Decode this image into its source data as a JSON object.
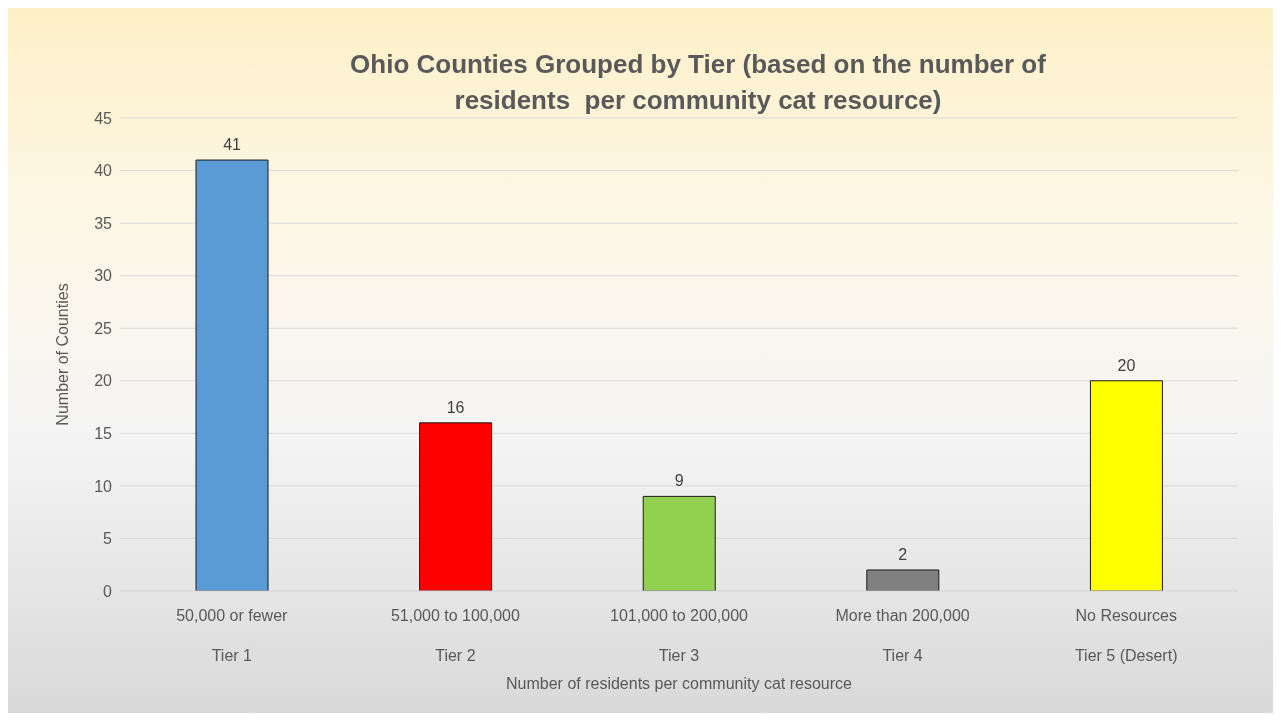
{
  "chart_data": {
    "type": "bar",
    "title": "Ohio Counties Grouped by Tier (based on the number of residents  per community cat resource)",
    "xlabel": "Number of residents per community cat resource",
    "ylabel": "Number of Counties",
    "categories": [
      "50,000 or fewer\nTier 1",
      "51,000 to 100,000\nTier 2",
      "101,000 to 200,000\nTier 3",
      "More than 200,000\nTier 4",
      "No Resources\nTier 5 (Desert)"
    ],
    "values": [
      41,
      16,
      9,
      2,
      20
    ],
    "colors": [
      "#5b9bd5",
      "#ff0000",
      "#92d050",
      "#808080",
      "#ffff00"
    ],
    "ylim": [
      0,
      45
    ],
    "yticks": [
      0,
      5,
      10,
      15,
      20,
      25,
      30,
      35,
      40,
      45
    ],
    "grid": "y",
    "data_labels": true,
    "legend": false
  }
}
